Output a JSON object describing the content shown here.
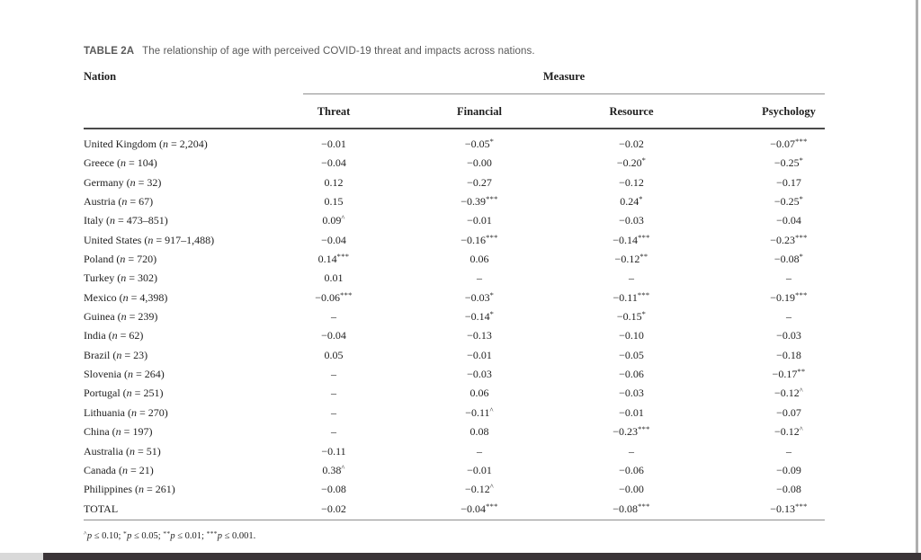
{
  "page": {
    "title_label": "TABLE 2A",
    "title_text": "The relationship of age with perceived COVID-19 threat and impacts across nations."
  },
  "table": {
    "row_header": "Nation",
    "span_header": "Measure",
    "columns": [
      "Threat",
      "Financial",
      "Resource",
      "Psychology"
    ],
    "rows": [
      {
        "name": "United Kingdom",
        "n": "2,204",
        "values": [
          "−0.01",
          "−0.05*",
          "−0.02",
          "−0.07***"
        ]
      },
      {
        "name": "Greece",
        "n": "104",
        "values": [
          "−0.04",
          "−0.00",
          "−0.20*",
          "−0.25*"
        ]
      },
      {
        "name": "Germany",
        "n": "32",
        "values": [
          "0.12",
          "−0.27",
          "−0.12",
          "−0.17"
        ]
      },
      {
        "name": "Austria",
        "n": "67",
        "values": [
          "0.15",
          "−0.39***",
          "0.24*",
          "−0.25*"
        ]
      },
      {
        "name": "Italy",
        "n": "473–851",
        "values": [
          "0.09^",
          "−0.01",
          "−0.03",
          "−0.04"
        ]
      },
      {
        "name": "United States",
        "n": "917–1,488",
        "values": [
          "−0.04",
          "−0.16***",
          "−0.14***",
          "−0.23***"
        ]
      },
      {
        "name": "Poland",
        "n": "720",
        "values": [
          "0.14***",
          "0.06",
          "−0.12**",
          "−0.08*"
        ]
      },
      {
        "name": "Turkey",
        "n": "302",
        "values": [
          "0.01",
          "–",
          "–",
          "–"
        ]
      },
      {
        "name": "Mexico",
        "n": "4,398",
        "values": [
          "−0.06***",
          "−0.03*",
          "−0.11***",
          "−0.19***"
        ]
      },
      {
        "name": "Guinea",
        "n": "239",
        "values": [
          "–",
          "−0.14*",
          "−0.15*",
          "–"
        ]
      },
      {
        "name": "India",
        "n": "62",
        "values": [
          "−0.04",
          "−0.13",
          "−0.10",
          "−0.03"
        ]
      },
      {
        "name": "Brazil",
        "n": "23",
        "values": [
          "0.05",
          "−0.01",
          "−0.05",
          "−0.18"
        ]
      },
      {
        "name": "Slovenia",
        "n": "264",
        "values": [
          "–",
          "−0.03",
          "−0.06",
          "−0.17**"
        ]
      },
      {
        "name": "Portugal",
        "n": "251",
        "values": [
          "–",
          "0.06",
          "−0.03",
          "−0.12^"
        ]
      },
      {
        "name": "Lithuania",
        "n": "270",
        "values": [
          "–",
          "−0.11^",
          "−0.01",
          "−0.07"
        ]
      },
      {
        "name": "China",
        "n": "197",
        "values": [
          "–",
          "0.08",
          "−0.23***",
          "−0.12^"
        ]
      },
      {
        "name": "Australia",
        "n": "51",
        "values": [
          "−0.11",
          "–",
          "–",
          "–"
        ]
      },
      {
        "name": "Canada",
        "n": "21",
        "values": [
          "0.38^",
          "−0.01",
          "−0.06",
          "−0.09"
        ]
      },
      {
        "name": "Philippines",
        "n": "261",
        "values": [
          "−0.08",
          "−0.12^",
          "−0.00",
          "−0.08"
        ]
      },
      {
        "name": "TOTAL",
        "n": null,
        "values": [
          "−0.02",
          "−0.04***",
          "−0.08***",
          "−0.13***"
        ]
      }
    ],
    "footnote": "^p ≤ 0.10; *p ≤ 0.05; **p ≤ 0.01; ***p ≤ 0.001."
  },
  "colors": {
    "title_gray": "#595959",
    "text": "#1f1f1f",
    "rule_light": "#8f8f8f",
    "rule_dark": "#4a4a4a",
    "bottom_bar_dark": "#3b3538",
    "bottom_bar_light": "#d9d9d9"
  }
}
